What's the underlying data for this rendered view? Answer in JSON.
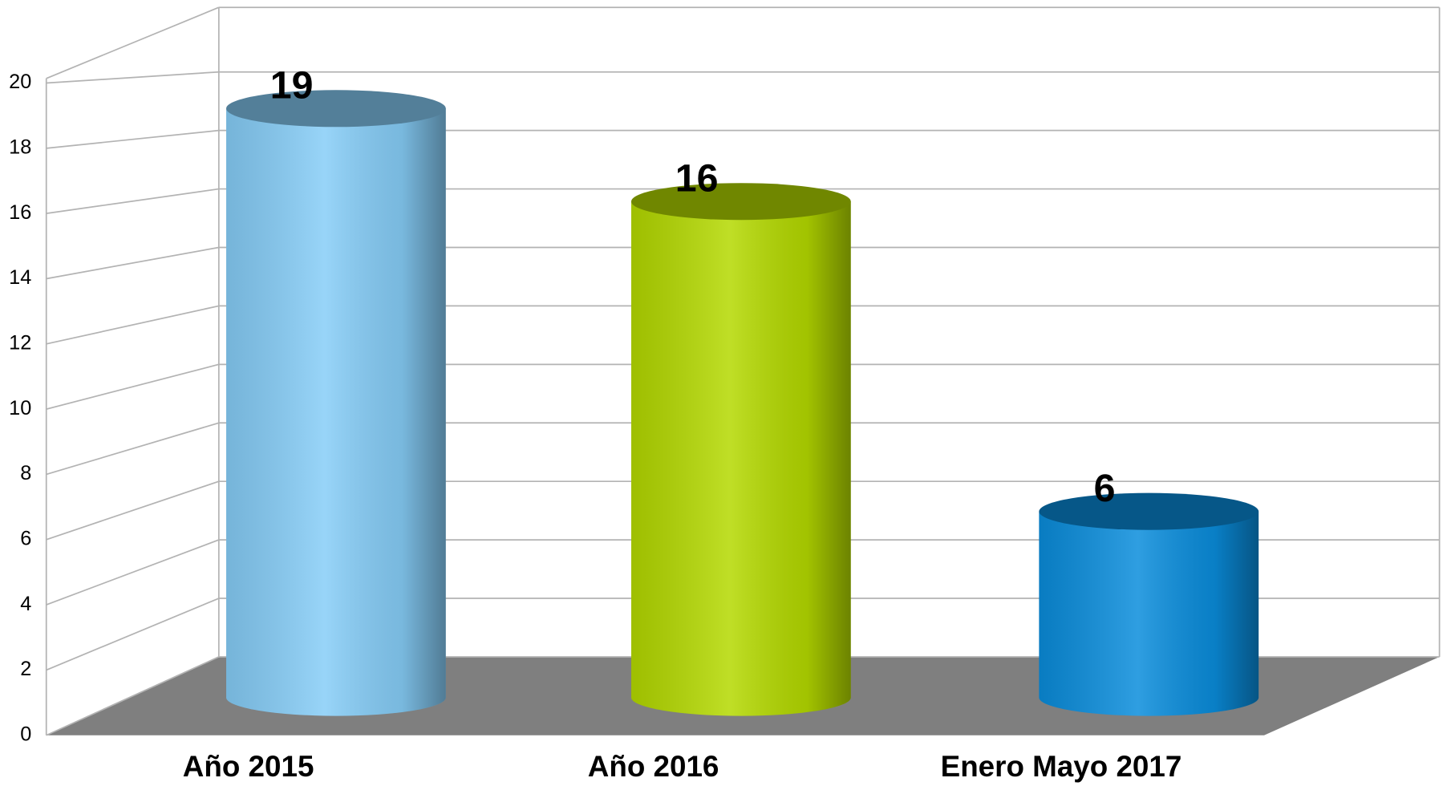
{
  "chart_data": {
    "type": "bar3d",
    "categories": [
      "Año 2015",
      "Año 2016",
      "Enero Mayo 2017"
    ],
    "values": [
      19,
      16,
      6
    ],
    "colors": [
      "#86cdf7",
      "#b4d900",
      "#0a8ddc"
    ],
    "ylim": [
      0,
      20
    ],
    "yticks": [
      0,
      2,
      4,
      6,
      8,
      10,
      12,
      14,
      16,
      18,
      20
    ],
    "grid": true
  }
}
